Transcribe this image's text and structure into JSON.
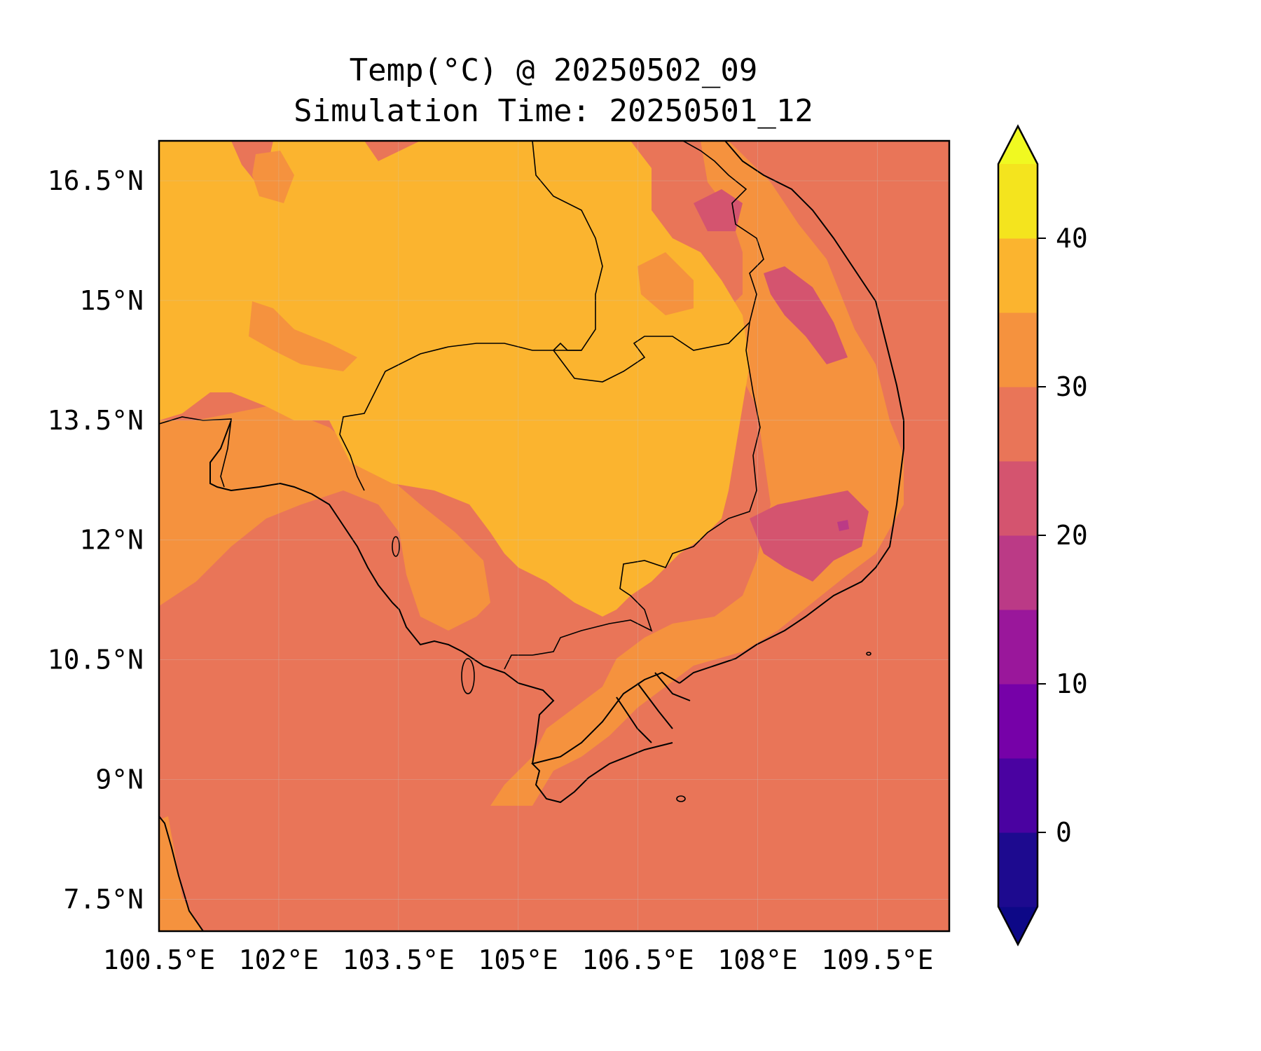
{
  "title": {
    "line1": "Temp(°C) @ 20250502_09",
    "line2": "Simulation Time: 20250501_12"
  },
  "map": {
    "lon_range": [
      100.5,
      110.4
    ],
    "lat_range": [
      7.1,
      17.0
    ],
    "lon_ticks": [
      "100.5°E",
      "102°E",
      "103.5°E",
      "105°E",
      "106.5°E",
      "108°E",
      "109.5°E"
    ],
    "lat_ticks": [
      "16.5°N",
      "15°N",
      "13.5°N",
      "12°N",
      "10.5°N",
      "9°N",
      "7.5°N"
    ],
    "lon_tick_values": [
      100.5,
      102,
      103.5,
      105,
      106.5,
      108,
      109.5
    ],
    "lat_tick_values": [
      16.5,
      15,
      13.5,
      12,
      10.5,
      9,
      7.5
    ],
    "background_color": "#E97558",
    "colors": {
      "c25_30": "#E97558",
      "c30_35": "#F5923E",
      "c35_40": "#FBB42F",
      "c20_25": "#D4546F",
      "c15_20": "#BB3A86",
      "coast": "#000000"
    }
  },
  "colorbar": {
    "ticks": [
      "0",
      "10",
      "20",
      "30",
      "40"
    ],
    "tick_values": [
      0,
      10,
      20,
      30,
      40
    ],
    "range": [
      -5,
      45
    ],
    "step": 5,
    "colors": [
      "#1D0A8F",
      "#4A02A1",
      "#7601A8",
      "#9A179B",
      "#BB3A86",
      "#D4546F",
      "#E97558",
      "#F5923E",
      "#FBB42F",
      "#F4E41E"
    ],
    "extend_low_color": "#0D0887",
    "extend_high_color": "#F0F921"
  }
}
